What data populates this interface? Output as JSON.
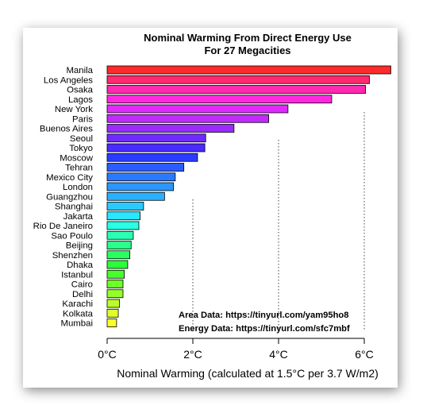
{
  "chart_data": {
    "type": "bar",
    "orientation": "horizontal",
    "title_lines": [
      "Nominal Warming From Direct Energy Use",
      "For 27 Megacities"
    ],
    "xlabel": "Nominal Warming (calculated at 1.5°C per 3.7 W/m2)",
    "xlim": [
      0,
      6.6
    ],
    "x_ticks": [
      0,
      2,
      4,
      6
    ],
    "x_tick_labels": [
      "0°C",
      "2°C",
      "4°C",
      "6°C"
    ],
    "grid": "dotted vertical reference lines at 2°C, 4°C and 6°C",
    "categories": [
      "Manila",
      "Los Angeles",
      "Osaka",
      "Lagos",
      "New York",
      "Paris",
      "Buenos Aires",
      "Seoul",
      "Tokyo",
      "Moscow",
      "Tehran",
      "Mexico City",
      "London",
      "Guangzhou",
      "Shanghai",
      "Jakarta",
      "Rio De Janeiro",
      "Sao Poulo",
      "Beijing",
      "Shenzhen",
      "Dhaka",
      "Istanbul",
      "Cairo",
      "Delhi",
      "Karachi",
      "Kolkata",
      "Mumbai"
    ],
    "values": [
      6.62,
      6.12,
      6.03,
      5.24,
      4.22,
      3.77,
      2.96,
      2.3,
      2.28,
      2.11,
      1.79,
      1.59,
      1.55,
      1.34,
      0.85,
      0.77,
      0.74,
      0.61,
      0.56,
      0.53,
      0.48,
      0.4,
      0.37,
      0.37,
      0.29,
      0.26,
      0.22
    ],
    "colors": [
      "#ff2a2a",
      "#ff2a70",
      "#ff2ab0",
      "#ff2ae0",
      "#e02aff",
      "#c02aff",
      "#9a2aff",
      "#702aff",
      "#4a2aff",
      "#2a3cff",
      "#2a5cff",
      "#2a7aff",
      "#2a96ff",
      "#2ab0ff",
      "#2acaff",
      "#2ae6ff",
      "#2affe6",
      "#2affb4",
      "#2aff8a",
      "#2aff60",
      "#2aff3a",
      "#48ff2a",
      "#6eff2a",
      "#94ff2a",
      "#baff2a",
      "#e0ff2a",
      "#ffff2a"
    ]
  },
  "annotations": {
    "area": "Area Data: https://tinyurl.com/yam95ho8",
    "energy": "Energy Data: https://tinyurl.com/sfc7mbf"
  }
}
